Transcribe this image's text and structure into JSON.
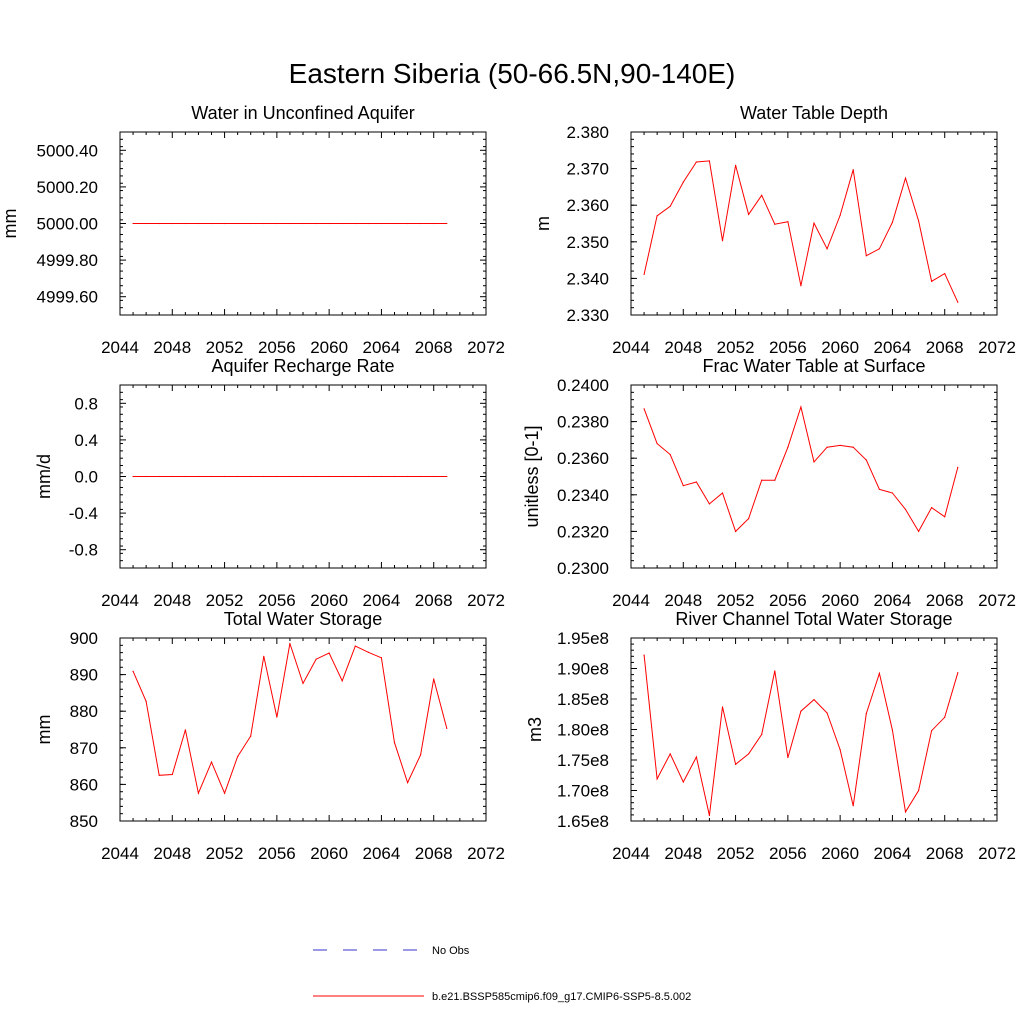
{
  "figure": {
    "title": "Eastern Siberia (50-66.5N,90-140E)"
  },
  "legend": {
    "entries": [
      {
        "label": "No Obs",
        "color": "#3333cc",
        "style": "dashed"
      },
      {
        "label": "b.e21.BSSP585cmip6.f09_g17.CMIP6-SSP5-8.5.002",
        "color": "#ff0000",
        "style": "solid"
      }
    ]
  },
  "chart_data": [
    {
      "type": "line",
      "title": "Water in Unconfined Aquifer",
      "xlabel": "",
      "ylabel": "mm",
      "xlim": [
        2044,
        2072
      ],
      "xticks": [
        2044,
        2048,
        2052,
        2056,
        2060,
        2064,
        2068,
        2072
      ],
      "xtick_labels": [
        "2044",
        "2048",
        "2052",
        "2056",
        "2060",
        "2064",
        "2068",
        "2072"
      ],
      "ylim": [
        4999.5,
        5000.5
      ],
      "yticks": [
        4999.6,
        4999.8,
        5000.0,
        5000.2,
        5000.4
      ],
      "ytick_labels": [
        "4999.60",
        "4999.80",
        "5000.00",
        "5000.20",
        "5000.40"
      ],
      "series": [
        {
          "name": "b.e21.BSSP585cmip6.f09_g17.CMIP6-SSP5-8.5.002",
          "color": "#ff0000",
          "x": [
            2045,
            2046,
            2047,
            2048,
            2049,
            2050,
            2051,
            2052,
            2053,
            2054,
            2055,
            2056,
            2057,
            2058,
            2059,
            2060,
            2061,
            2062,
            2063,
            2064,
            2065,
            2066,
            2067,
            2068,
            2069
          ],
          "values": [
            5000.0,
            5000.0,
            5000.0,
            5000.0,
            5000.0,
            5000.0,
            5000.0,
            5000.0,
            5000.0,
            5000.0,
            5000.0,
            5000.0,
            5000.0,
            5000.0,
            5000.0,
            5000.0,
            5000.0,
            5000.0,
            5000.0,
            5000.0,
            5000.0,
            5000.0,
            5000.0,
            5000.0,
            5000.0
          ]
        }
      ]
    },
    {
      "type": "line",
      "title": "Water Table Depth",
      "xlabel": "",
      "ylabel": "m",
      "xlim": [
        2044,
        2072
      ],
      "xticks": [
        2044,
        2048,
        2052,
        2056,
        2060,
        2064,
        2068,
        2072
      ],
      "xtick_labels": [
        "2044",
        "2048",
        "2052",
        "2056",
        "2060",
        "2064",
        "2068",
        "2072"
      ],
      "ylim": [
        2.33,
        2.38
      ],
      "yticks": [
        2.33,
        2.34,
        2.35,
        2.36,
        2.37,
        2.38
      ],
      "ytick_labels": [
        "2.330",
        "2.340",
        "2.350",
        "2.360",
        "2.370",
        "2.380"
      ],
      "series": [
        {
          "name": "b.e21.BSSP585cmip6.f09_g17.CMIP6-SSP5-8.5.002",
          "color": "#ff0000",
          "x": [
            2045,
            2046,
            2047,
            2048,
            2049,
            2050,
            2051,
            2052,
            2053,
            2054,
            2055,
            2056,
            2057,
            2058,
            2059,
            2060,
            2061,
            2062,
            2063,
            2064,
            2065,
            2066,
            2067,
            2068,
            2069
          ],
          "values": [
            2.3411,
            2.3571,
            2.3597,
            2.3663,
            2.3718,
            2.3721,
            2.3503,
            2.3709,
            2.3575,
            2.3627,
            2.3548,
            2.3555,
            2.338,
            2.3551,
            2.3481,
            2.3572,
            2.3697,
            2.3462,
            2.3481,
            2.3553,
            2.3674,
            2.3557,
            2.3392,
            2.3413,
            2.3335
          ]
        }
      ]
    },
    {
      "type": "line",
      "title": "Aquifer Recharge Rate",
      "xlabel": "",
      "ylabel": "mm/d",
      "xlim": [
        2044,
        2072
      ],
      "xticks": [
        2044,
        2048,
        2052,
        2056,
        2060,
        2064,
        2068,
        2072
      ],
      "xtick_labels": [
        "2044",
        "2048",
        "2052",
        "2056",
        "2060",
        "2064",
        "2068",
        "2072"
      ],
      "ylim": [
        -1.0,
        1.0
      ],
      "yticks": [
        -0.8,
        -0.4,
        0.0,
        0.4,
        0.8
      ],
      "ytick_labels": [
        "-0.8",
        "-0.4",
        "0.0",
        "0.4",
        "0.8"
      ],
      "series": [
        {
          "name": "b.e21.BSSP585cmip6.f09_g17.CMIP6-SSP5-8.5.002",
          "color": "#ff0000",
          "x": [
            2045,
            2046,
            2047,
            2048,
            2049,
            2050,
            2051,
            2052,
            2053,
            2054,
            2055,
            2056,
            2057,
            2058,
            2059,
            2060,
            2061,
            2062,
            2063,
            2064,
            2065,
            2066,
            2067,
            2068,
            2069
          ],
          "values": [
            0.0,
            0.0,
            0.0,
            0.0,
            0.0,
            0.0,
            0.0,
            0.0,
            0.0,
            0.0,
            0.0,
            0.0,
            0.0,
            0.0,
            0.0,
            0.0,
            0.0,
            0.0,
            0.0,
            0.0,
            0.0,
            0.0,
            0.0,
            0.0,
            0.0
          ]
        }
      ]
    },
    {
      "type": "line",
      "title": "Frac Water Table at Surface",
      "xlabel": "",
      "ylabel": "unitless [0-1]",
      "xlim": [
        2044,
        2072
      ],
      "xticks": [
        2044,
        2048,
        2052,
        2056,
        2060,
        2064,
        2068,
        2072
      ],
      "xtick_labels": [
        "2044",
        "2048",
        "2052",
        "2056",
        "2060",
        "2064",
        "2068",
        "2072"
      ],
      "ylim": [
        0.23,
        0.24
      ],
      "yticks": [
        0.23,
        0.232,
        0.234,
        0.236,
        0.238,
        0.24
      ],
      "ytick_labels": [
        "0.2300",
        "0.2320",
        "0.2340",
        "0.2360",
        "0.2380",
        "0.2400"
      ],
      "series": [
        {
          "name": "b.e21.BSSP585cmip6.f09_g17.CMIP6-SSP5-8.5.002",
          "color": "#ff0000",
          "x": [
            2045,
            2046,
            2047,
            2048,
            2049,
            2050,
            2051,
            2052,
            2053,
            2054,
            2055,
            2056,
            2057,
            2058,
            2059,
            2060,
            2061,
            2062,
            2063,
            2064,
            2065,
            2066,
            2067,
            2068,
            2069
          ],
          "values": [
            0.2387,
            0.2368,
            0.2362,
            0.2345,
            0.2347,
            0.2335,
            0.2341,
            0.232,
            0.2327,
            0.2348,
            0.2348,
            0.2366,
            0.2388,
            0.2358,
            0.2366,
            0.2367,
            0.2366,
            0.2359,
            0.2343,
            0.2341,
            0.2332,
            0.232,
            0.2333,
            0.2328,
            0.2355
          ]
        }
      ]
    },
    {
      "type": "line",
      "title": "Total Water Storage",
      "xlabel": "",
      "ylabel": "mm",
      "xlim": [
        2044,
        2072
      ],
      "xticks": [
        2044,
        2048,
        2052,
        2056,
        2060,
        2064,
        2068,
        2072
      ],
      "xtick_labels": [
        "2044",
        "2048",
        "2052",
        "2056",
        "2060",
        "2064",
        "2068",
        "2072"
      ],
      "ylim": [
        850,
        900
      ],
      "yticks": [
        850,
        860,
        870,
        880,
        890,
        900
      ],
      "ytick_labels": [
        "850",
        "860",
        "870",
        "880",
        "890",
        "900"
      ],
      "series": [
        {
          "name": "b.e21.BSSP585cmip6.f09_g17.CMIP6-SSP5-8.5.002",
          "color": "#ff0000",
          "x": [
            2045,
            2046,
            2047,
            2048,
            2049,
            2050,
            2051,
            2052,
            2053,
            2054,
            2055,
            2056,
            2057,
            2058,
            2059,
            2060,
            2061,
            2062,
            2063,
            2064,
            2065,
            2066,
            2067,
            2068,
            2069
          ],
          "values": [
            890.9,
            882.7,
            862.5,
            862.7,
            874.9,
            857.6,
            866.1,
            857.6,
            867.6,
            873.2,
            895.0,
            878.4,
            898.5,
            887.6,
            894.2,
            895.9,
            888.3,
            897.8,
            896.1,
            894.6,
            871.4,
            860.5,
            868.1,
            888.8,
            875.3
          ]
        }
      ]
    },
    {
      "type": "line",
      "title": "River Channel Total Water Storage",
      "xlabel": "",
      "ylabel": "m3",
      "xlim": [
        2044,
        2072
      ],
      "xticks": [
        2044,
        2048,
        2052,
        2056,
        2060,
        2064,
        2068,
        2072
      ],
      "xtick_labels": [
        "2044",
        "2048",
        "2052",
        "2056",
        "2060",
        "2064",
        "2068",
        "2072"
      ],
      "ylim": [
        165000000,
        195000000
      ],
      "yticks": [
        165000000,
        170000000,
        175000000,
        180000000,
        185000000,
        190000000,
        195000000
      ],
      "ytick_labels": [
        "1.65e8",
        "1.70e8",
        "1.75e8",
        "1.80e8",
        "1.85e8",
        "1.90e8",
        "1.95e8"
      ],
      "series": [
        {
          "name": "b.e21.BSSP585cmip6.f09_g17.CMIP6-SSP5-8.5.002",
          "color": "#ff0000",
          "x": [
            2045,
            2046,
            2047,
            2048,
            2049,
            2050,
            2051,
            2052,
            2053,
            2054,
            2055,
            2056,
            2057,
            2058,
            2059,
            2060,
            2061,
            2062,
            2063,
            2064,
            2065,
            2066,
            2067,
            2068,
            2069
          ],
          "values": [
            192200000,
            171900000,
            176000000,
            171400000,
            175500000,
            165900000,
            183700000,
            174300000,
            176000000,
            179200000,
            189600000,
            175400000,
            183000000,
            184900000,
            182700000,
            176700000,
            167500000,
            182600000,
            189200000,
            179900000,
            166500000,
            170000000,
            179800000,
            182000000,
            189300000
          ]
        }
      ]
    }
  ]
}
